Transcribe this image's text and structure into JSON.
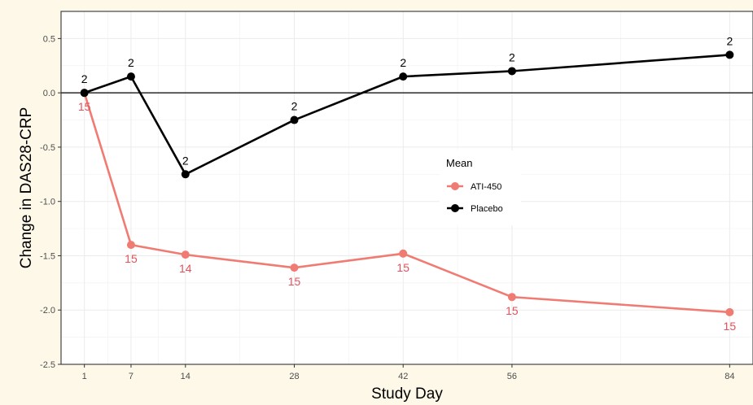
{
  "chart_data": {
    "type": "line",
    "xlabel": "Study Day",
    "ylabel": "Change in DAS28-CRP",
    "x": [
      1,
      7,
      14,
      28,
      42,
      56,
      84
    ],
    "x_ticks": [
      1,
      7,
      14,
      28,
      42,
      56,
      84
    ],
    "xlim": [
      -2,
      87
    ],
    "ylim": [
      -2.5,
      0.75
    ],
    "y_ticks": [
      -2.5,
      -2.0,
      -1.5,
      -1.0,
      -0.5,
      0.0,
      0.5
    ],
    "y_tick_labels": [
      "-2.5",
      "-2.0",
      "-1.5",
      "-1.0",
      "-0.5",
      "0.0",
      "0.5"
    ],
    "reference_line_y": 0,
    "grid": true,
    "legend": {
      "title": "Mean",
      "placement": "right-center"
    },
    "series": [
      {
        "name": "ATI-450",
        "color": "#f07b72",
        "label_color": "#e0525c",
        "values": [
          0.0,
          -1.4,
          -1.49,
          -1.61,
          -1.48,
          -1.88,
          -2.02
        ],
        "n_labels": [
          "15",
          "15",
          "14",
          "15",
          "15",
          "15",
          "15"
        ]
      },
      {
        "name": "Placebo",
        "color": "#000000",
        "label_color": "#000000",
        "values": [
          0.0,
          0.15,
          -0.75,
          -0.25,
          0.15,
          0.2,
          0.35
        ],
        "n_labels": [
          "2",
          "2",
          "2",
          "2",
          "2",
          "2",
          "2"
        ]
      }
    ]
  }
}
